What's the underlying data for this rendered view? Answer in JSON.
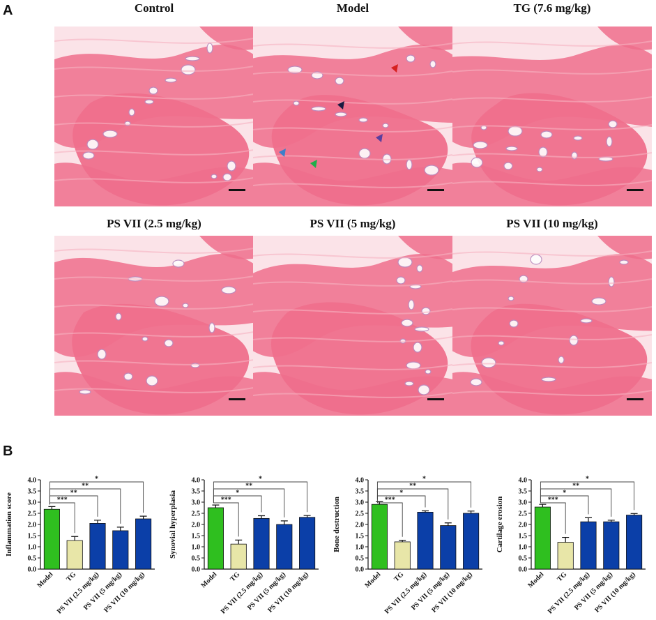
{
  "panel_a": {
    "letter": "A",
    "images": [
      {
        "title": "Control"
      },
      {
        "title": "Model"
      },
      {
        "title": "TG (7.6 mg/kg)"
      },
      {
        "title": "PS VII (2.5 mg/kg)"
      },
      {
        "title": "PS VII (5 mg/kg)"
      },
      {
        "title": "PS VII (10 mg/kg)"
      }
    ],
    "colors": {
      "tissue": "#ef6f8c",
      "background": "#fbe3e8",
      "marrow": "#b88bbf"
    },
    "arrow_colors": [
      "#d62020",
      "#1a1a40",
      "#5a3f9e",
      "#3d7fc9",
      "#1fae4a"
    ]
  },
  "panel_b": {
    "letter": "B",
    "colors": {
      "model": "#2fbf1f",
      "tg": "#e8e6a8",
      "psvii": "#0b3fa8"
    },
    "chart_data": [
      {
        "type": "bar",
        "ylabel": "Inflammation score",
        "categories": [
          "Model",
          "TG",
          "PS VII (2.5 mg/kg)",
          "PS VII (5 mg/kg)",
          "PS VII (10 mg/kg)"
        ],
        "values": [
          2.68,
          1.28,
          2.05,
          1.72,
          2.25
        ],
        "errors": [
          0.12,
          0.18,
          0.14,
          0.16,
          0.12
        ],
        "ylim": [
          0,
          4.0
        ],
        "yticks": [
          "0.0",
          "0.5",
          "1.0",
          "1.5",
          "2.0",
          "2.5",
          "3.0",
          "3.5",
          "4.0"
        ],
        "significance": [
          "***",
          "**",
          "**",
          "*"
        ]
      },
      {
        "type": "bar",
        "ylabel": "Synovial hyperplasia",
        "categories": [
          "Model",
          "TG",
          "PS VII (2.5 mg/kg)",
          "PS VII (5 mg/kg)",
          "PS VII (10 mg/kg)"
        ],
        "values": [
          2.75,
          1.12,
          2.27,
          2.0,
          2.32
        ],
        "errors": [
          0.12,
          0.18,
          0.12,
          0.16,
          0.08
        ],
        "ylim": [
          0,
          4.0
        ],
        "yticks": [
          "0.0",
          "0.5",
          "1.0",
          "1.5",
          "2.0",
          "2.5",
          "3.0",
          "3.5",
          "4.0"
        ],
        "significance": [
          "***",
          "*",
          "**",
          "*"
        ]
      },
      {
        "type": "bar",
        "ylabel": "Bone destruction",
        "categories": [
          "Model",
          "TG",
          "PS VII (2.5 mg/kg)",
          "PS VII (5 mg/kg)",
          "PS VII (10 mg/kg)"
        ],
        "values": [
          2.9,
          1.22,
          2.55,
          1.95,
          2.5
        ],
        "errors": [
          0.12,
          0.07,
          0.06,
          0.12,
          0.1
        ],
        "ylim": [
          0,
          4.0
        ],
        "yticks": [
          "0.0",
          "0.5",
          "1.0",
          "1.5",
          "2.0",
          "2.5",
          "3.0",
          "3.5",
          "4.0"
        ],
        "significance": [
          "***",
          "*",
          "**",
          "*"
        ]
      },
      {
        "type": "bar",
        "ylabel": "Cartilage erosion",
        "categories": [
          "Model",
          "TG",
          "PS VII (2.5 mg/kg)",
          "PS VII (5 mg/kg)",
          "PS VII (10 mg/kg)"
        ],
        "values": [
          2.78,
          1.2,
          2.12,
          2.12,
          2.42
        ],
        "errors": [
          0.12,
          0.22,
          0.18,
          0.07,
          0.07
        ],
        "ylim": [
          0,
          4.0
        ],
        "yticks": [
          "0.0",
          "0.5",
          "1.0",
          "1.5",
          "2.0",
          "2.5",
          "3.0",
          "3.5",
          "4.0"
        ],
        "significance": [
          "***",
          "*",
          "**",
          "*"
        ]
      }
    ]
  }
}
